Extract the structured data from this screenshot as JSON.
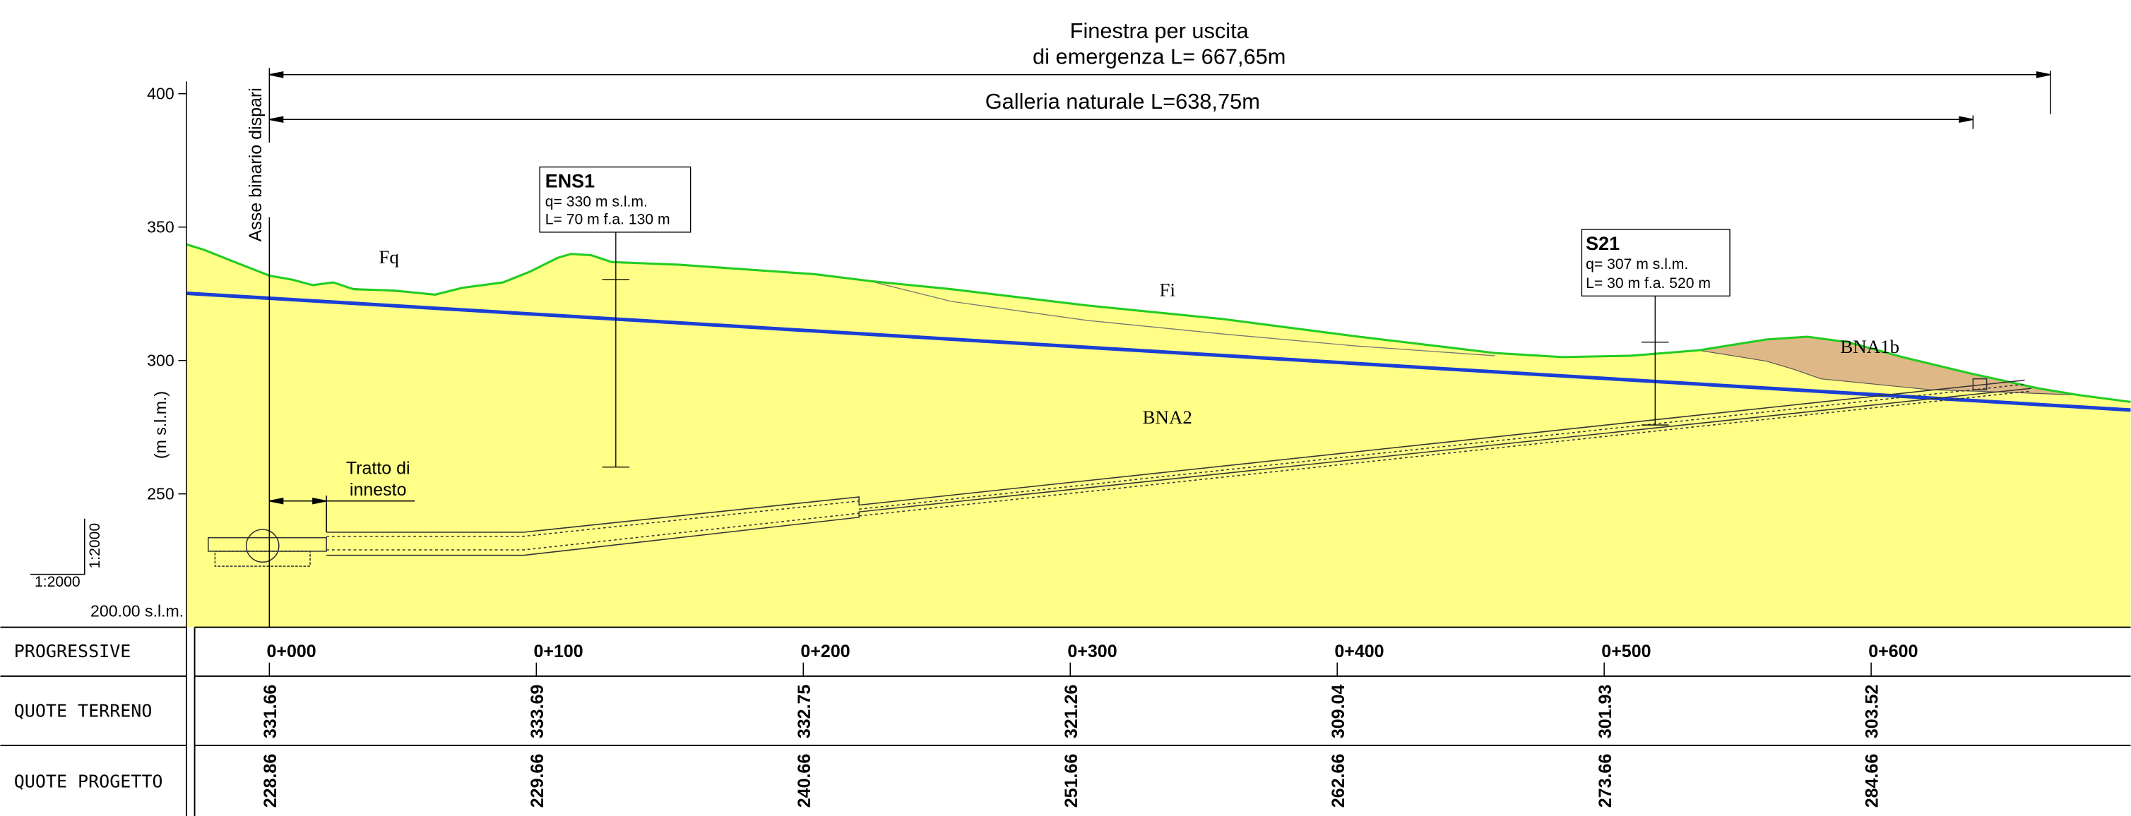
{
  "title": [
    "Finestra per uscita",
    "di emergenza L= 667,65m"
  ],
  "tunnel_label": "Galleria naturale L=638,75m",
  "axis_line_label": "Asse binario dispari",
  "y_axis": {
    "label": "(m s.l.m.)",
    "ticks": [
      250,
      300,
      350,
      400
    ],
    "base_label": "200.00 s.l.m."
  },
  "scale": [
    "1:2000",
    "1:2000"
  ],
  "boreholes": [
    {
      "name": "ENS1",
      "lines": [
        "q= 330 m s.l.m.",
        "L= 70 m f.a. 130 m"
      ]
    },
    {
      "name": "S21",
      "lines": [
        "q= 307 m s.l.m.",
        "L= 30 m f.a. 520 m"
      ]
    }
  ],
  "formations": [
    "Fq",
    "Fi",
    "BNA1b",
    "BNA2"
  ],
  "junction_label": [
    "Tratto di",
    "innesto"
  ],
  "table": {
    "row_labels": [
      "PROGRESSIVE",
      "QUOTE TERRENO",
      "QUOTE PROGETTO"
    ],
    "stations": [
      "0+000",
      "0+100",
      "0+200",
      "0+300",
      "0+400",
      "0+500",
      "0+600"
    ],
    "ground": [
      331.66,
      333.69,
      332.75,
      321.26,
      309.04,
      301.93,
      303.52
    ],
    "design": [
      228.86,
      229.66,
      240.66,
      251.66,
      262.66,
      273.66,
      284.66
    ]
  }
}
